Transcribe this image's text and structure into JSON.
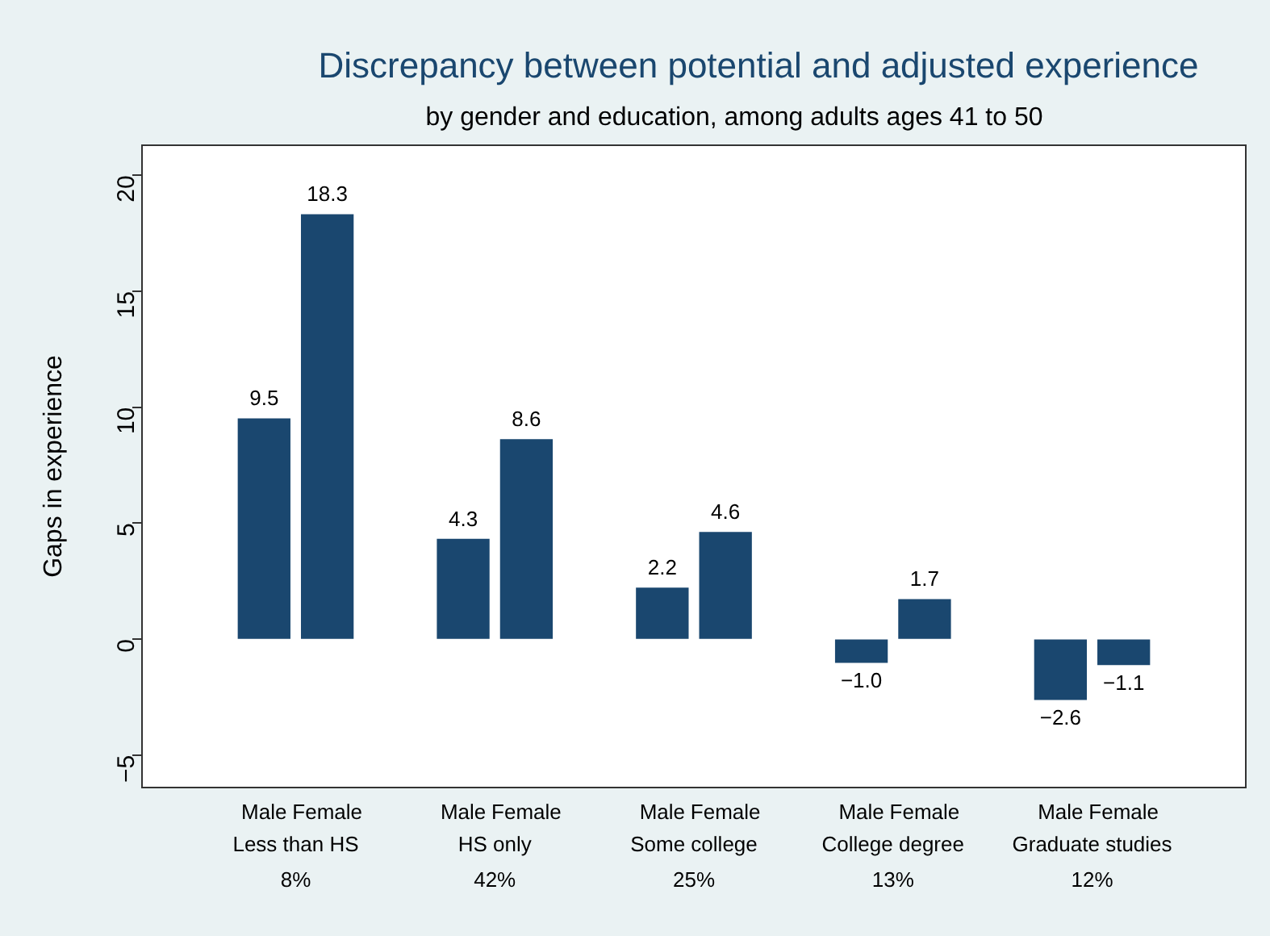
{
  "chart_data": {
    "type": "bar",
    "title": "Discrepancy between potential and adjusted experience",
    "subtitle": "by gender and education, among adults ages 41 to 50",
    "ylabel": "Gaps in experience",
    "categories": [
      "Male",
      "Female",
      "Male",
      "Female",
      "Male",
      "Female",
      "Male",
      "Female",
      "Male",
      "Female"
    ],
    "values": [
      9.5,
      18.3,
      4.3,
      8.6,
      2.2,
      4.6,
      -1.0,
      1.7,
      -2.6,
      -1.1
    ],
    "value_labels": [
      "9.5",
      "18.3",
      "4.3",
      "8.6",
      "2.2",
      "4.6",
      "−1.0",
      "1.7",
      "−2.6",
      "−1.1"
    ],
    "color": "#1a476f",
    "ylim": [
      -6.4,
      21.3
    ],
    "yticks": [
      {
        "value": -5,
        "label": "−5"
      },
      0,
      5,
      10,
      15,
      20
    ],
    "grid": false,
    "annotations": [
      "Less than HS",
      "8%",
      "HS only",
      "42%",
      "Some college",
      "25%",
      "College degree",
      "13%",
      "Graduate studies",
      "12%"
    ]
  }
}
